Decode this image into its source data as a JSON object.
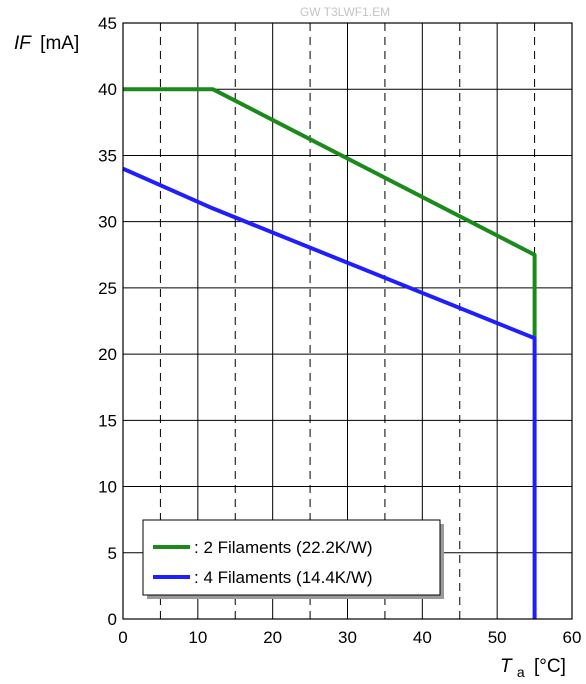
{
  "watermark": "GW T3LWF1.EM",
  "chart_data": {
    "type": "line",
    "y_label_italic": "IF",
    "y_label_unit": "[mA]",
    "x_label_main": "T",
    "x_label_sub": "a",
    "x_label_unit": "[°C]",
    "xlim": [
      0,
      60
    ],
    "ylim": [
      0,
      45
    ],
    "x_major_ticks": [
      0,
      10,
      20,
      30,
      40,
      50,
      60
    ],
    "x_major_tick_labels": [
      "0",
      "10",
      "20",
      "30",
      "40",
      "50",
      "60"
    ],
    "x_minor_dashed_grid": [
      5,
      15,
      25,
      35,
      45,
      55
    ],
    "y_ticks": [
      0,
      5,
      10,
      15,
      20,
      25,
      30,
      35,
      40,
      45
    ],
    "y_tick_labels": [
      "0",
      "5",
      "10",
      "15",
      "20",
      "25",
      "30",
      "35",
      "40",
      "45"
    ],
    "grid": "major solid, x minor dashed",
    "legend_position": "bottom-left",
    "series": [
      {
        "name": ": 2 Filaments (22.2K/W)",
        "color": "#1a8a1a",
        "points": [
          [
            0,
            40
          ],
          [
            12,
            40
          ],
          [
            55,
            27.5
          ],
          [
            55,
            21.2
          ]
        ]
      },
      {
        "name": ": 4 Filaments (14.4K/W)",
        "color": "#1e1eff",
        "points": [
          [
            0,
            34
          ],
          [
            12,
            31
          ],
          [
            55,
            21.2
          ],
          [
            55,
            0
          ]
        ]
      }
    ]
  }
}
